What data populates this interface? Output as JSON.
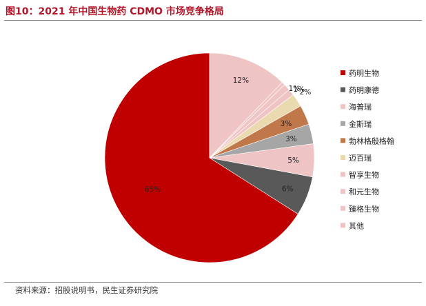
{
  "figure": {
    "title": "图10：2021 年中国生物药 CDMO 市场竞争格局",
    "source": "资料来源：招股说明书，民生证券研究院"
  },
  "chart_data": {
    "type": "pie",
    "title": "",
    "legend_position": "right",
    "slices": [
      {
        "name": "药明生物",
        "value": 65,
        "label": "65%",
        "color": "#c00000"
      },
      {
        "name": "药明康德",
        "value": 6,
        "label": "6%",
        "color": "#595959"
      },
      {
        "name": "海普瑞",
        "value": 5,
        "label": "5%",
        "color": "#efc4c4"
      },
      {
        "name": "金斯瑞",
        "value": 3,
        "label": "3%",
        "color": "#a6a6a6"
      },
      {
        "name": "勃林格殷格翰",
        "value": 3,
        "label": "3%",
        "color": "#c0784a"
      },
      {
        "name": "迈百瑞",
        "value": 2,
        "label": "2%",
        "color": "#ebd9b0"
      },
      {
        "name": "智享生物",
        "value": 1,
        "label": "1%",
        "color": "#efc4c4"
      },
      {
        "name": "和元生物",
        "value": 1,
        "label": "1%",
        "color": "#efc4c4"
      },
      {
        "name": "臻格生物",
        "value": 0.5,
        "label": "",
        "color": "#efc4c4"
      },
      {
        "name": "其他",
        "value": 12,
        "label": "12%",
        "color": "#efc4c4"
      }
    ]
  }
}
